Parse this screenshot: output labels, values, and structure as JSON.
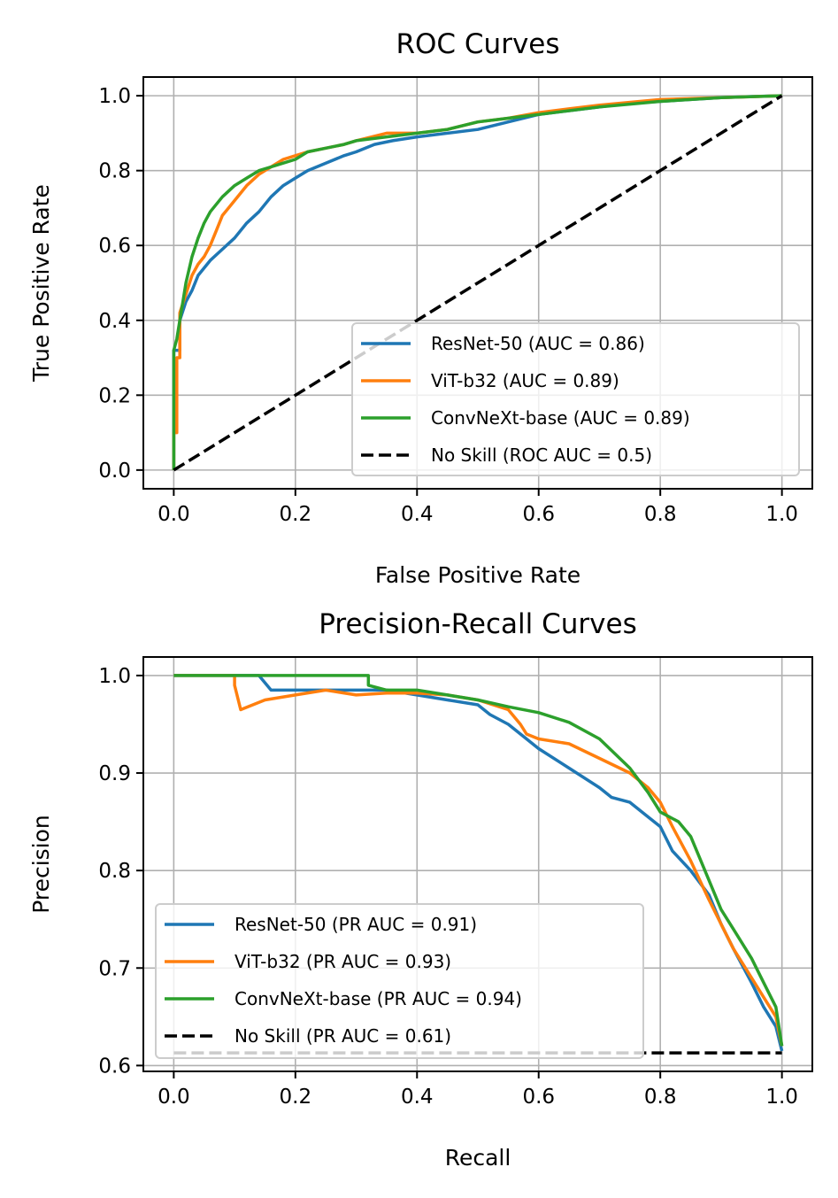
{
  "chart_data": [
    {
      "type": "line",
      "title": "ROC Curves",
      "xlabel": "False Positive Rate",
      "ylabel": "True Positive Rate",
      "xlim": [
        -0.05,
        1.05
      ],
      "ylim": [
        -0.05,
        1.05
      ],
      "xticks": [
        "0.0",
        "0.2",
        "0.4",
        "0.6",
        "0.8",
        "1.0"
      ],
      "yticks": [
        "0.0",
        "0.2",
        "0.4",
        "0.6",
        "0.8",
        "1.0"
      ],
      "grid": true,
      "legend_position": "lower-right",
      "series": [
        {
          "name": "ResNet-50 (AUC = 0.86)",
          "color": "#1f77b4",
          "dash": "solid",
          "x": [
            0,
            0,
            0.01,
            0.01,
            0.02,
            0.03,
            0.04,
            0.05,
            0.06,
            0.08,
            0.1,
            0.12,
            0.14,
            0.16,
            0.18,
            0.2,
            0.22,
            0.25,
            0.28,
            0.3,
            0.33,
            0.36,
            0.4,
            0.45,
            0.5,
            0.55,
            0.6,
            0.65,
            0.7,
            0.75,
            0.8,
            0.85,
            0.9,
            0.95,
            1.0
          ],
          "y": [
            0,
            0.32,
            0.32,
            0.4,
            0.45,
            0.48,
            0.52,
            0.54,
            0.56,
            0.59,
            0.62,
            0.66,
            0.69,
            0.73,
            0.76,
            0.78,
            0.8,
            0.82,
            0.84,
            0.85,
            0.87,
            0.88,
            0.89,
            0.9,
            0.91,
            0.93,
            0.95,
            0.96,
            0.97,
            0.98,
            0.985,
            0.99,
            0.995,
            0.998,
            1.0
          ]
        },
        {
          "name": "ViT-b32 (AUC = 0.89)",
          "color": "#ff7f0e",
          "dash": "solid",
          "x": [
            0,
            0,
            0.005,
            0.005,
            0.01,
            0.01,
            0.02,
            0.03,
            0.04,
            0.05,
            0.06,
            0.07,
            0.08,
            0.1,
            0.12,
            0.14,
            0.16,
            0.18,
            0.2,
            0.22,
            0.25,
            0.28,
            0.3,
            0.35,
            0.4,
            0.45,
            0.5,
            0.55,
            0.6,
            0.65,
            0.7,
            0.8,
            0.9,
            1.0
          ],
          "y": [
            0,
            0.1,
            0.1,
            0.3,
            0.3,
            0.42,
            0.47,
            0.52,
            0.55,
            0.57,
            0.6,
            0.64,
            0.68,
            0.72,
            0.76,
            0.79,
            0.81,
            0.83,
            0.84,
            0.85,
            0.86,
            0.87,
            0.88,
            0.9,
            0.9,
            0.91,
            0.93,
            0.94,
            0.955,
            0.965,
            0.975,
            0.99,
            0.995,
            1.0
          ]
        },
        {
          "name": "ConvNeXt-base (AUC = 0.89)",
          "color": "#2ca02c",
          "dash": "solid",
          "x": [
            0,
            0,
            0.005,
            0.01,
            0.015,
            0.02,
            0.03,
            0.04,
            0.05,
            0.06,
            0.07,
            0.08,
            0.1,
            0.12,
            0.14,
            0.16,
            0.18,
            0.2,
            0.22,
            0.25,
            0.28,
            0.3,
            0.35,
            0.4,
            0.45,
            0.5,
            0.55,
            0.6,
            0.65,
            0.7,
            0.8,
            0.9,
            1.0
          ],
          "y": [
            0,
            0.32,
            0.35,
            0.4,
            0.45,
            0.5,
            0.57,
            0.62,
            0.66,
            0.69,
            0.71,
            0.73,
            0.76,
            0.78,
            0.8,
            0.81,
            0.82,
            0.83,
            0.85,
            0.86,
            0.87,
            0.88,
            0.89,
            0.9,
            0.91,
            0.93,
            0.94,
            0.95,
            0.96,
            0.97,
            0.985,
            0.995,
            1.0
          ]
        },
        {
          "name": "No Skill (ROC AUC = 0.5)",
          "color": "#000000",
          "dash": "dashed",
          "x": [
            0,
            1
          ],
          "y": [
            0,
            1
          ]
        }
      ]
    },
    {
      "type": "line",
      "title": "Precision-Recall Curves",
      "xlabel": "Recall",
      "ylabel": "Precision",
      "xlim": [
        -0.05,
        1.05
      ],
      "ylim": [
        0.594,
        1.019
      ],
      "xticks": [
        "0.0",
        "0.2",
        "0.4",
        "0.6",
        "0.8",
        "1.0"
      ],
      "yticks": [
        "0.6",
        "0.7",
        "0.8",
        "0.9",
        "1.0"
      ],
      "grid": true,
      "legend_position": "lower-left",
      "series": [
        {
          "name": "ResNet-50 (PR AUC = 0.91)",
          "color": "#1f77b4",
          "dash": "solid",
          "x": [
            0,
            0.14,
            0.16,
            0.2,
            0.25,
            0.3,
            0.35,
            0.4,
            0.45,
            0.5,
            0.52,
            0.55,
            0.58,
            0.6,
            0.65,
            0.7,
            0.72,
            0.75,
            0.78,
            0.8,
            0.82,
            0.85,
            0.88,
            0.9,
            0.92,
            0.95,
            0.97,
            0.99,
            1.0
          ],
          "y": [
            1.0,
            1.0,
            0.985,
            0.985,
            0.985,
            0.985,
            0.985,
            0.98,
            0.975,
            0.97,
            0.96,
            0.95,
            0.935,
            0.925,
            0.905,
            0.885,
            0.875,
            0.87,
            0.855,
            0.845,
            0.82,
            0.8,
            0.775,
            0.745,
            0.72,
            0.685,
            0.66,
            0.64,
            0.615
          ]
        },
        {
          "name": "ViT-b32 (PR AUC = 0.93)",
          "color": "#ff7f0e",
          "dash": "solid",
          "x": [
            0,
            0.1,
            0.1,
            0.11,
            0.15,
            0.2,
            0.25,
            0.3,
            0.35,
            0.4,
            0.45,
            0.5,
            0.55,
            0.57,
            0.58,
            0.6,
            0.65,
            0.7,
            0.75,
            0.78,
            0.8,
            0.82,
            0.85,
            0.88,
            0.9,
            0.92,
            0.95,
            0.97,
            0.99,
            1.0
          ],
          "y": [
            1.0,
            1.0,
            0.99,
            0.965,
            0.975,
            0.98,
            0.985,
            0.98,
            0.982,
            0.982,
            0.98,
            0.975,
            0.965,
            0.95,
            0.94,
            0.935,
            0.93,
            0.915,
            0.9,
            0.885,
            0.87,
            0.845,
            0.81,
            0.77,
            0.745,
            0.72,
            0.69,
            0.67,
            0.65,
            0.62
          ]
        },
        {
          "name": "ConvNeXt-base (PR AUC = 0.94)",
          "color": "#2ca02c",
          "dash": "solid",
          "x": [
            0,
            0.32,
            0.32,
            0.35,
            0.4,
            0.45,
            0.5,
            0.55,
            0.6,
            0.65,
            0.7,
            0.75,
            0.78,
            0.8,
            0.83,
            0.85,
            0.86,
            0.88,
            0.9,
            0.92,
            0.95,
            0.97,
            0.99,
            1.0
          ],
          "y": [
            1.0,
            1.0,
            0.99,
            0.985,
            0.985,
            0.98,
            0.975,
            0.968,
            0.962,
            0.952,
            0.935,
            0.905,
            0.88,
            0.86,
            0.85,
            0.835,
            0.82,
            0.79,
            0.76,
            0.74,
            0.71,
            0.685,
            0.66,
            0.62
          ]
        },
        {
          "name": "No Skill (PR AUC = 0.61)",
          "color": "#000000",
          "dash": "dashed",
          "x": [
            0,
            1
          ],
          "y": [
            0.613,
            0.613
          ]
        }
      ]
    }
  ]
}
